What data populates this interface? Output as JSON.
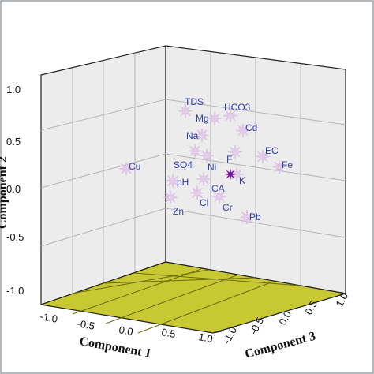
{
  "chart_data": {
    "type": "scatter",
    "projection": "3d",
    "title": "",
    "xlabel": "Component 1",
    "ylabel": "Component 2",
    "zlabel": "Component 3",
    "xlim": [
      -1.0,
      1.0
    ],
    "ylim": [
      -1.0,
      1.0
    ],
    "zlim": [
      -1.0,
      1.0
    ],
    "x_ticks": [
      "-1.0",
      "-0.5",
      "0.0",
      "0.5",
      "1.0"
    ],
    "y_ticks": [
      "1.0",
      "0.5",
      "0.0",
      "-0.5",
      "-1.0"
    ],
    "z_ticks": [
      "1.0",
      "0.5",
      "0.0",
      "-0.5",
      "-1.0"
    ],
    "grid": true,
    "colors": {
      "floor": "#c8c832",
      "walls": "#ececec",
      "marker": "#e4cde9",
      "highlight_marker": "#7b1fa2",
      "label": "#3340b8"
    },
    "points": [
      {
        "label": "Cu",
        "y": 0.12
      },
      {
        "label": "TDS",
        "y": 0.74
      },
      {
        "label": "Mg",
        "y": 0.66
      },
      {
        "label": "HCO3",
        "y": 0.69
      },
      {
        "label": "Na",
        "y": 0.48
      },
      {
        "label": "Cd",
        "y": 0.53
      },
      {
        "label": "SO4",
        "y": 0.31
      },
      {
        "label": "Ni",
        "y": 0.26
      },
      {
        "label": "F",
        "y": 0.3
      },
      {
        "label": "EC",
        "y": 0.25
      },
      {
        "label": "Fe",
        "y": 0.14
      },
      {
        "label": "K",
        "y": 0.06
      },
      {
        "label": "pH",
        "y": -0.01
      },
      {
        "label": "CA",
        "y": 0.01
      },
      {
        "label": "Cl",
        "y": -0.14
      },
      {
        "label": "Cr",
        "y": -0.18
      },
      {
        "label": "Zn",
        "y": -0.19
      },
      {
        "label": "Pb",
        "y": -0.4
      }
    ]
  }
}
